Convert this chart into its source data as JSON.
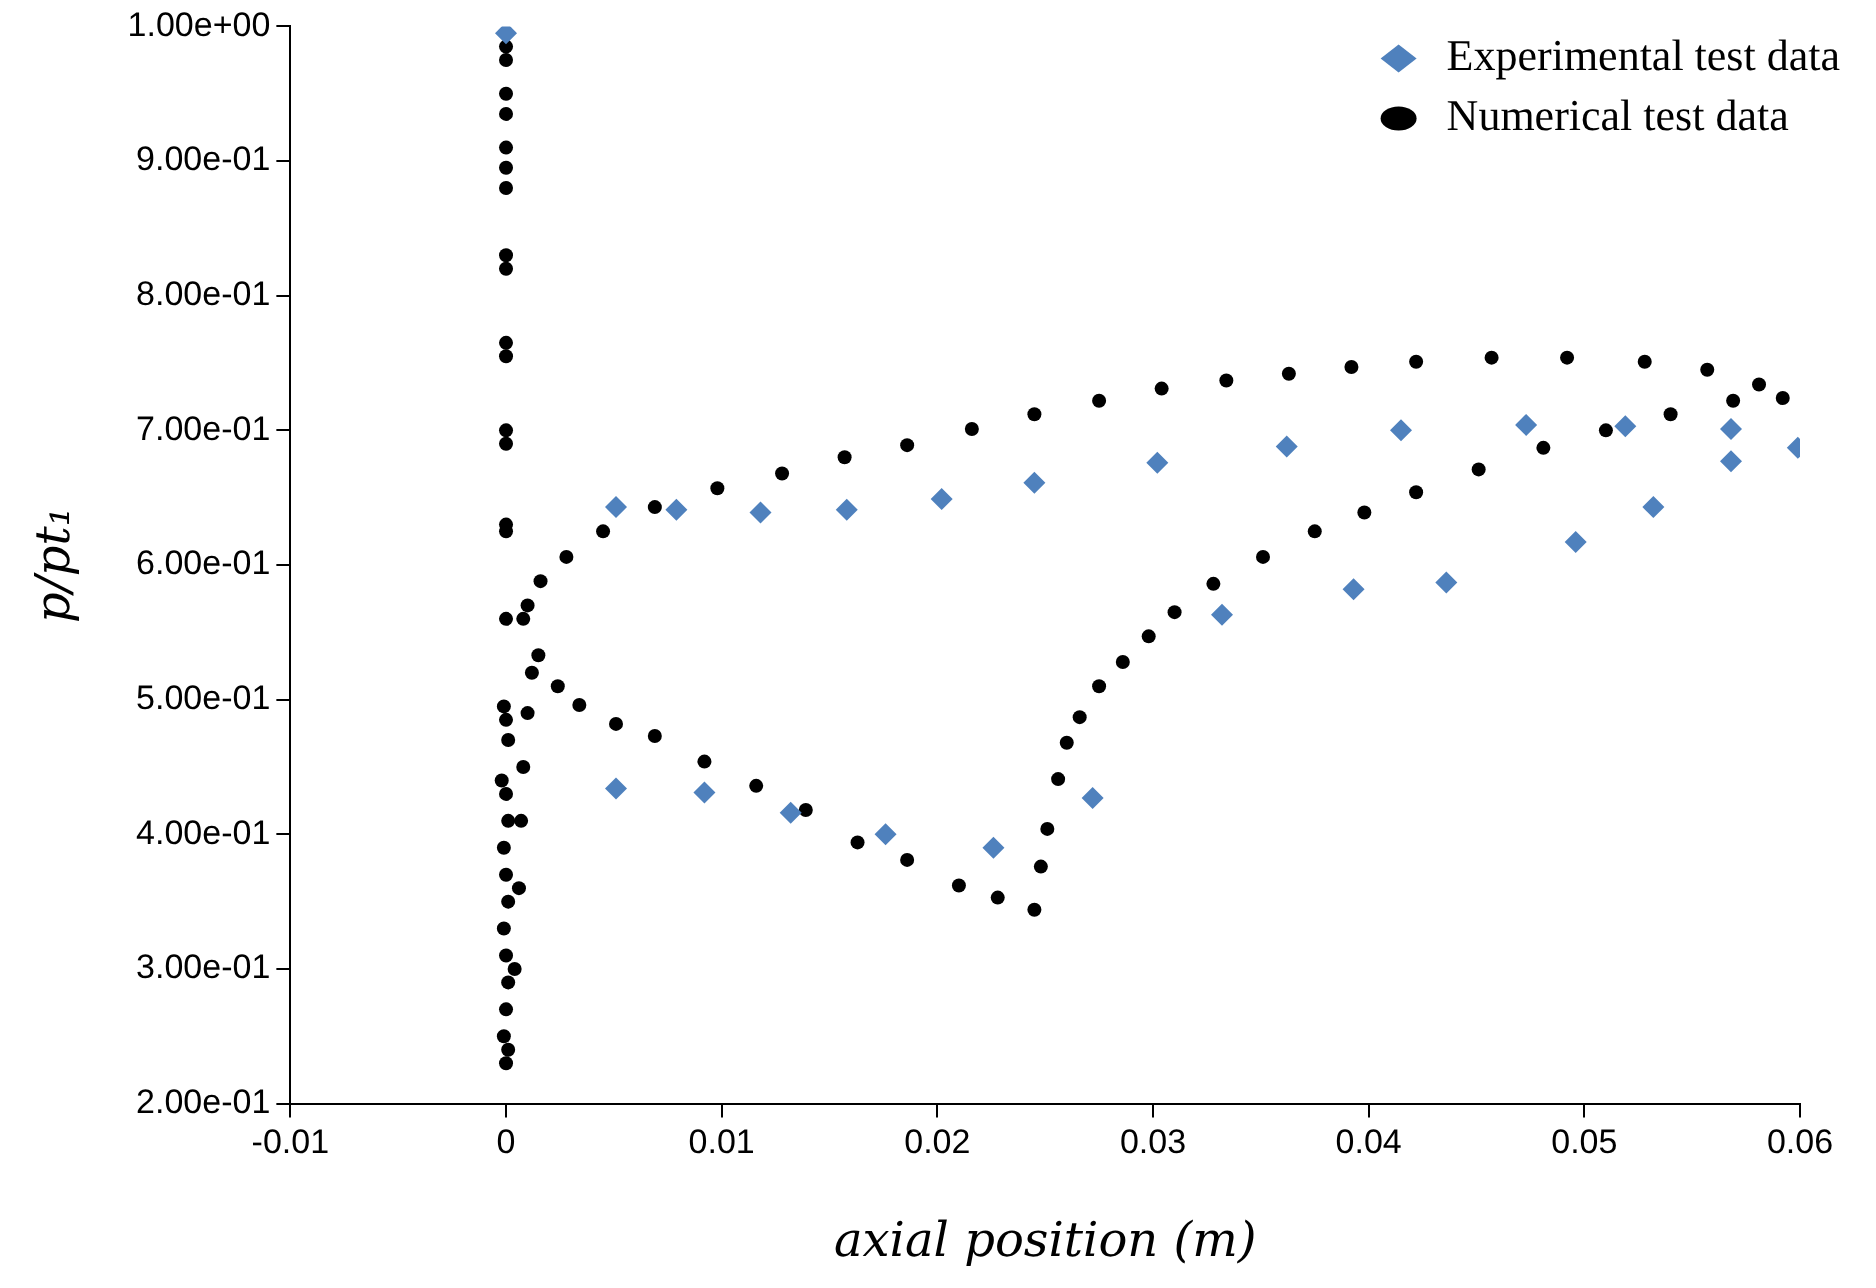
{
  "chart_data": {
    "type": "scatter",
    "xlabel": "axial position (m)",
    "ylabel": "p/pt₁",
    "xlim": [
      -0.01,
      0.06
    ],
    "xticks": [
      -0.01,
      0,
      0.01,
      0.02,
      0.03,
      0.04,
      0.05,
      0.06
    ],
    "ylim": [
      0.2,
      1.0
    ],
    "yticks": [
      {
        "value": 0.2,
        "label": "2.00e-01"
      },
      {
        "value": 0.3,
        "label": "3.00e-01"
      },
      {
        "value": 0.4,
        "label": "4.00e-01"
      },
      {
        "value": 0.5,
        "label": "5.00e-01"
      },
      {
        "value": 0.6,
        "label": "6.00e-01"
      },
      {
        "value": 0.7,
        "label": "7.00e-01"
      },
      {
        "value": 0.8,
        "label": "8.00e-01"
      },
      {
        "value": 0.9,
        "label": "9.00e-01"
      },
      {
        "value": 1.0,
        "label": "1.00e+00"
      }
    ],
    "grid": false,
    "legend": "top right",
    "series": [
      {
        "name": "Experimental test data",
        "color": "#4f81bd",
        "marker": "diamond",
        "x": [
          0,
          0.0051,
          0.0079,
          0.0118,
          0.0158,
          0.0202,
          0.0245,
          0.0302,
          0.0362,
          0.0415,
          0.0473,
          0.0519,
          0.0568,
          0.0568,
          0.0599,
          0.0532,
          0.0496,
          0.0436,
          0.0393,
          0.0332,
          0.0272,
          0.0226,
          0.0176,
          0.0132,
          0.0092,
          0.0051
        ],
        "values": [
          0.995,
          0.643,
          0.641,
          0.639,
          0.641,
          0.649,
          0.661,
          0.676,
          0.688,
          0.7,
          0.704,
          0.703,
          0.701,
          0.677,
          0.687,
          0.643,
          0.617,
          0.587,
          0.582,
          0.563,
          0.427,
          0.39,
          0.4,
          0.416,
          0.431,
          0.434
        ]
      },
      {
        "name": "Numerical test data",
        "color": "#000000",
        "marker": "circle",
        "x": [
          0,
          0,
          0,
          0,
          0,
          0,
          0,
          0,
          0,
          0,
          0,
          0,
          0,
          0,
          0,
          0,
          -0.0001,
          0,
          0.0001,
          -0.0002,
          0,
          0.0001,
          -0.0001,
          0,
          0.0001,
          -0.0001,
          0,
          0.0001,
          0,
          -0.0001,
          0.0001,
          0,
          0.0004,
          0.0006,
          0.0007,
          0.0008,
          0.001,
          0.0012,
          0.0015,
          0.0024,
          0.0034,
          0.0051,
          0.0069,
          0.0092,
          0.0116,
          0.0139,
          0.0163,
          0.0186,
          0.021,
          0.0228,
          0.0245,
          0.0248,
          0.0251,
          0.0256,
          0.026,
          0.0266,
          0.0275,
          0.0286,
          0.0298,
          0.031,
          0.0328,
          0.0351,
          0.0375,
          0.0398,
          0.0422,
          0.0451,
          0.0481,
          0.051,
          0.054,
          0.0569,
          0.0592,
          0.0581,
          0.0557,
          0.0528,
          0.0492,
          0.0457,
          0.0422,
          0.0392,
          0.0363,
          0.0334,
          0.0304,
          0.0275,
          0.0245,
          0.0216,
          0.0186,
          0.0157,
          0.0128,
          0.0098,
          0.0069,
          0.0045,
          0.0028,
          0.0016,
          0.001,
          0.0008
        ],
        "values": [
          0.985,
          0.975,
          0.95,
          0.935,
          0.91,
          0.895,
          0.88,
          0.83,
          0.82,
          0.765,
          0.755,
          0.7,
          0.69,
          0.63,
          0.625,
          0.56,
          0.495,
          0.485,
          0.47,
          0.44,
          0.43,
          0.41,
          0.39,
          0.37,
          0.35,
          0.33,
          0.31,
          0.29,
          0.27,
          0.25,
          0.24,
          0.23,
          0.3,
          0.36,
          0.41,
          0.45,
          0.49,
          0.52,
          0.533,
          0.51,
          0.496,
          0.482,
          0.473,
          0.454,
          0.436,
          0.418,
          0.394,
          0.381,
          0.362,
          0.353,
          0.344,
          0.376,
          0.404,
          0.441,
          0.468,
          0.487,
          0.51,
          0.528,
          0.547,
          0.565,
          0.586,
          0.606,
          0.625,
          0.639,
          0.654,
          0.671,
          0.687,
          0.7,
          0.712,
          0.722,
          0.724,
          0.734,
          0.745,
          0.751,
          0.754,
          0.754,
          0.751,
          0.747,
          0.742,
          0.737,
          0.731,
          0.722,
          0.712,
          0.701,
          0.689,
          0.68,
          0.668,
          0.657,
          0.643,
          0.625,
          0.606,
          0.588,
          0.57,
          0.56
        ]
      }
    ]
  }
}
